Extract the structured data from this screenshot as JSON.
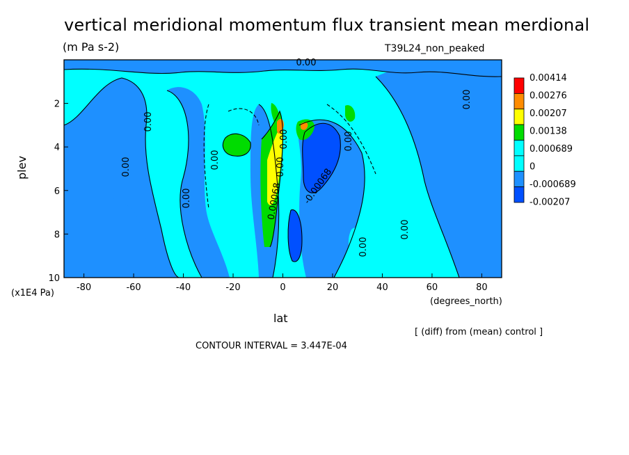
{
  "chart_data": {
    "type": "contour",
    "title": "vertical meridional momentum flux transient mean merdional",
    "units": "(m Pa s-2)",
    "run_label": "T39L24_non_peaked",
    "xlabel": "lat",
    "x_units": "(degrees_north)",
    "ylabel": "plev",
    "y_units": "(x1E4 Pa)",
    "xlim": [
      -88,
      88
    ],
    "ylim": [
      10,
      0
    ],
    "x_ticks": [
      "-80",
      "-60",
      "-40",
      "-20",
      "0",
      "20",
      "40",
      "60",
      "80"
    ],
    "x_tick_values": [
      -80,
      -60,
      -40,
      -20,
      0,
      20,
      40,
      60,
      80
    ],
    "y_ticks": [
      "2",
      "4",
      "6",
      "8",
      "10"
    ],
    "y_tick_values": [
      2,
      4,
      6,
      8,
      10
    ],
    "legend_levels": [
      "0.00414",
      "0.00276",
      "0.00207",
      "0.00138",
      "0.000689",
      "0",
      "-0.000689",
      "-0.00207"
    ],
    "legend_colors": [
      "#ff0000",
      "#ff8c00",
      "#ffff00",
      "#00dc00",
      "#00ffff",
      "#00ffff",
      "#1e90ff",
      "#0050ff"
    ],
    "contour_labels": [
      "0.00",
      "0.00",
      "0.00",
      "0.00",
      "0.00",
      "0.00",
      "0.00",
      "0.00",
      "0.00",
      "0.00",
      "-0.00068",
      "0.00068",
      "0.00"
    ],
    "footer_diff": "[ (diff) from (mean) control ]",
    "contour_interval": "CONTOUR INTERVAL = 3.447E-04"
  }
}
